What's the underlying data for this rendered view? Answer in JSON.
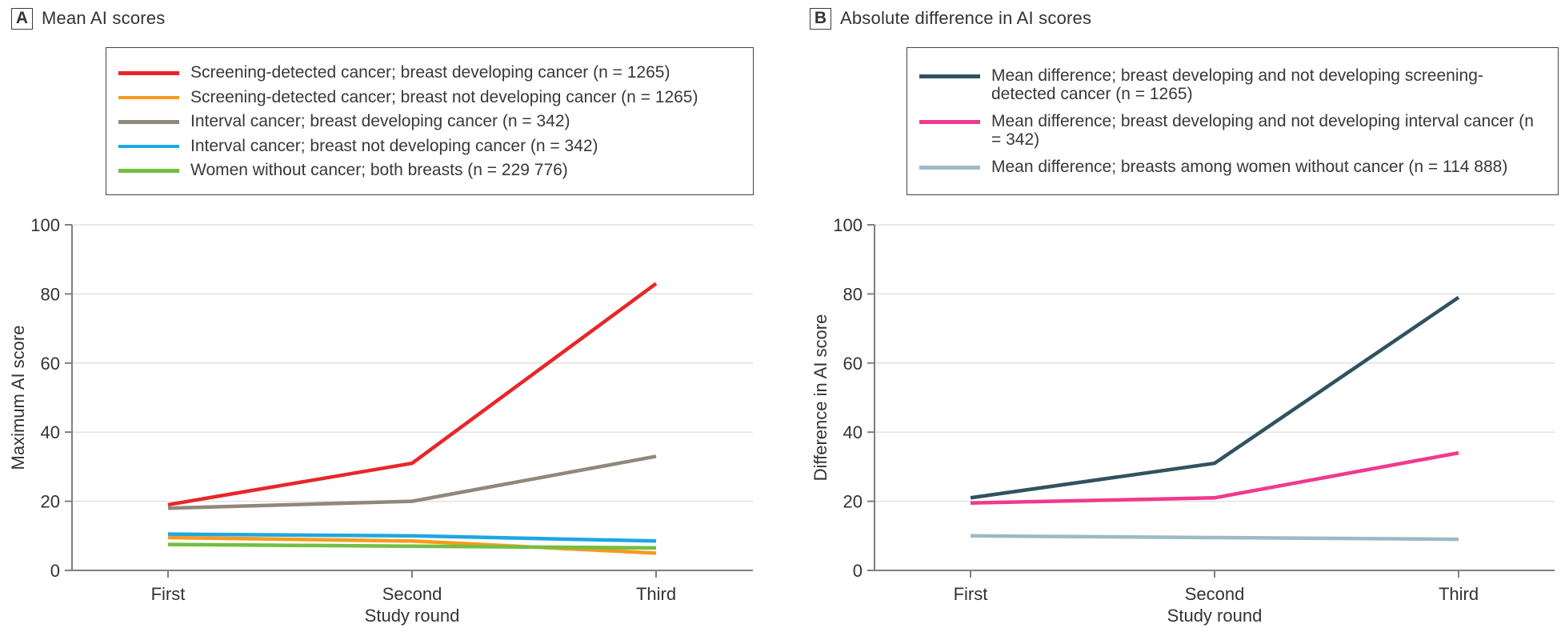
{
  "figure": {
    "panel_a": {
      "letter": "A",
      "title": "Mean AI scores"
    },
    "panel_b": {
      "letter": "B",
      "title": "Absolute difference in AI scores"
    }
  },
  "chart_data": [
    {
      "type": "line",
      "panel": "A",
      "title": "Mean AI scores",
      "x_categories": [
        "First",
        "Second",
        "Third"
      ],
      "xlabel": "Study round",
      "ylabel": "Maximum AI score",
      "ylim": [
        0,
        100
      ],
      "yticks": [
        0,
        20,
        40,
        60,
        80,
        100
      ],
      "grid": "horizontal",
      "legend_position": "top-left-box",
      "axis_color": "#7f7f7f",
      "grid_color": "#e2e2e2",
      "series": [
        {
          "name": "Screening-detected cancer; breast developing cancer (n = 1265)",
          "color": "#e8262a",
          "values": [
            19,
            31,
            83
          ]
        },
        {
          "name": "Screening-detected cancer; breast not developing cancer (n = 1265)",
          "color": "#f89b1b",
          "values": [
            9.5,
            8.5,
            5
          ]
        },
        {
          "name": "Interval cancer; breast developing cancer (n = 342)",
          "color": "#91877a",
          "values": [
            18,
            20,
            33
          ]
        },
        {
          "name": "Interval cancer; breast not developing cancer (n = 342)",
          "color": "#1ea7e2",
          "values": [
            10.5,
            10,
            8.5
          ]
        },
        {
          "name": "Women without cancer; both breasts (n = 229 776)",
          "color": "#72bf44",
          "values": [
            7.5,
            7,
            6.5
          ]
        }
      ]
    },
    {
      "type": "line",
      "panel": "B",
      "title": "Absolute difference in AI scores",
      "x_categories": [
        "First",
        "Second",
        "Third"
      ],
      "xlabel": "Study round",
      "ylabel": "Difference in AI score",
      "ylim": [
        0,
        100
      ],
      "yticks": [
        0,
        20,
        40,
        60,
        80,
        100
      ],
      "grid": "horizontal",
      "legend_position": "top-left-box",
      "axis_color": "#7f7f7f",
      "grid_color": "#e2e2e2",
      "series": [
        {
          "name": "Mean difference; breast developing and not developing screening-detected cancer (n = 1265)",
          "color": "#31525f",
          "values": [
            21,
            31,
            79
          ]
        },
        {
          "name": "Mean difference; breast developing and not developing interval cancer (n = 342)",
          "color": "#f0398c",
          "values": [
            19.5,
            21,
            34
          ]
        },
        {
          "name": "Mean difference; breasts among women without cancer (n = 114 888)",
          "color": "#9dbac5",
          "values": [
            10,
            9.5,
            9
          ]
        }
      ]
    }
  ]
}
